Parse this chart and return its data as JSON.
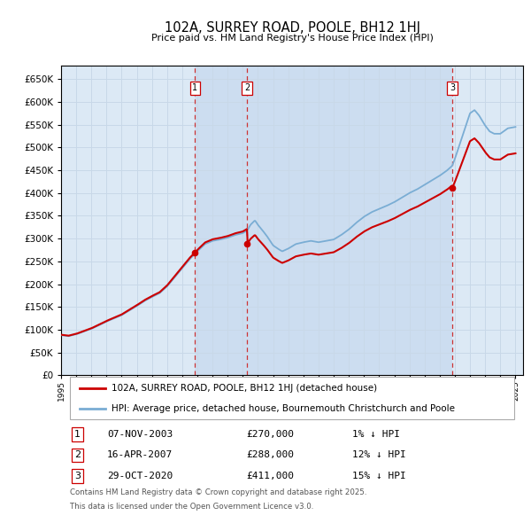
{
  "title": "102A, SURREY ROAD, POOLE, BH12 1HJ",
  "subtitle": "Price paid vs. HM Land Registry's House Price Index (HPI)",
  "ylim": [
    0,
    680000
  ],
  "xlim_start": 1995.0,
  "xlim_end": 2025.5,
  "transactions": [
    {
      "num": 1,
      "date_label": "07-NOV-2003",
      "date_x": 2003.85,
      "price": 270000,
      "pct": "1%",
      "dir": "↓"
    },
    {
      "num": 2,
      "date_label": "16-APR-2007",
      "date_x": 2007.29,
      "price": 288000,
      "pct": "12%",
      "dir": "↓"
    },
    {
      "num": 3,
      "date_label": "29-OCT-2020",
      "date_x": 2020.83,
      "price": 411000,
      "pct": "15%",
      "dir": "↓"
    }
  ],
  "legend_line1": "102A, SURREY ROAD, POOLE, BH12 1HJ (detached house)",
  "legend_line2": "HPI: Average price, detached house, Bournemouth Christchurch and Poole",
  "footer1": "Contains HM Land Registry data © Crown copyright and database right 2025.",
  "footer2": "This data is licensed under the Open Government Licence v3.0.",
  "bg_color": "#ffffff",
  "grid_color": "#c8d8e8",
  "plot_bg": "#dce9f5",
  "shade_bg": "#ccddf0",
  "red_line_color": "#cc0000",
  "blue_line_color": "#7aadd4",
  "dashed_color": "#cc3333"
}
